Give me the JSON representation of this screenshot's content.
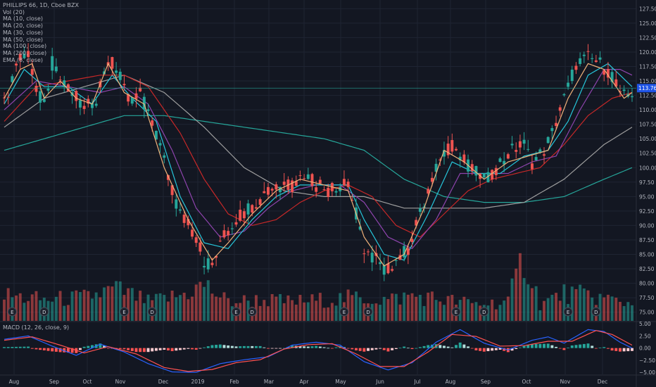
{
  "legend": {
    "title": "PHILLIPS 66, 1D, Cboe BZX",
    "vol": "Vol (20)",
    "ma10": "MA (10, close)",
    "ma20": "MA (20, close)",
    "ma30": "MA (30, close)",
    "ma50": "MA (50, close)",
    "ma100": "MA (100, close)",
    "ma200": "MA (200, close)",
    "ema8": "EMA (8, close)",
    "macd": "MACD (12, 26, close, 9)"
  },
  "colors": {
    "background": "#131722",
    "grid": "#1f2433",
    "up": "#26a69a",
    "down": "#ef5350",
    "ema8": "#f0b27a",
    "ma10": "#26c6da",
    "ma20": "#8e44ad",
    "ma30": "#c62828",
    "ma100": "#9e9e9e",
    "ma200": "#26a69a",
    "macd_line": "#2962ff",
    "signal_line": "#ff5252",
    "price_tag": "#1e53e5"
  },
  "chart_data": {
    "type": "candlestick",
    "title": "PHILLIPS 66, 1D, Cboe BZX",
    "current_price": "113.76",
    "price_axis": [
      "127.50",
      "125.00",
      "122.50",
      "120.00",
      "117.50",
      "115.00",
      "112.50",
      "110.00",
      "107.50",
      "105.00",
      "102.50",
      "100.00",
      "97.50",
      "95.00",
      "92.50",
      "90.00",
      "87.50",
      "85.00",
      "82.50",
      "80.00",
      "77.50",
      "75.00"
    ],
    "macd_axis": [
      "5.00",
      "2.50",
      "0.00",
      "−2.50",
      "−5.00"
    ],
    "x_labels": [
      "Aug",
      "Sep",
      "Oct",
      "Nov",
      "Dec",
      "2019",
      "Feb",
      "Mar",
      "Apr",
      "May",
      "Jun",
      "Jul",
      "Aug",
      "Sep",
      "Oct",
      "Nov",
      "Dec"
    ],
    "ylim": [
      73.5,
      129
    ],
    "macd_ylim": [
      -5.4,
      5.3
    ],
    "price_path": [
      [
        0,
        111
      ],
      [
        3,
        118
      ],
      [
        6,
        120
      ],
      [
        8,
        113
      ],
      [
        10,
        111
      ],
      [
        12,
        118
      ],
      [
        15,
        114
      ],
      [
        18,
        112
      ],
      [
        20,
        110
      ],
      [
        23,
        112
      ],
      [
        26,
        119
      ],
      [
        28,
        117
      ],
      [
        31,
        112
      ],
      [
        34,
        113
      ],
      [
        36,
        109
      ],
      [
        39,
        104
      ],
      [
        41,
        98
      ],
      [
        44,
        92
      ],
      [
        46,
        90
      ],
      [
        48,
        88
      ],
      [
        50,
        84
      ],
      [
        52,
        83
      ],
      [
        55,
        88
      ],
      [
        58,
        91
      ],
      [
        61,
        93
      ],
      [
        63,
        94
      ],
      [
        66,
        96
      ],
      [
        69,
        97
      ],
      [
        72,
        97
      ],
      [
        75,
        99
      ],
      [
        78,
        97
      ],
      [
        81,
        96
      ],
      [
        83,
        97
      ],
      [
        86,
        97
      ],
      [
        88,
        92
      ],
      [
        90,
        86
      ],
      [
        93,
        84
      ],
      [
        95,
        82
      ],
      [
        98,
        84
      ],
      [
        101,
        86
      ],
      [
        104,
        92
      ],
      [
        107,
        97
      ],
      [
        109,
        102
      ],
      [
        112,
        104
      ],
      [
        115,
        101
      ],
      [
        118,
        99
      ],
      [
        121,
        98
      ],
      [
        124,
        101
      ],
      [
        127,
        103
      ],
      [
        130,
        104
      ],
      [
        132,
        101
      ],
      [
        135,
        103
      ],
      [
        137,
        106
      ],
      [
        140,
        112
      ],
      [
        143,
        118
      ],
      [
        146,
        119
      ],
      [
        149,
        118
      ],
      [
        152,
        116
      ],
      [
        154,
        112
      ],
      [
        157,
        113
      ]
    ],
    "ema8": [
      [
        0,
        112
      ],
      [
        4,
        117
      ],
      [
        7,
        118
      ],
      [
        10,
        112
      ],
      [
        14,
        115
      ],
      [
        18,
        112
      ],
      [
        22,
        111
      ],
      [
        26,
        118
      ],
      [
        30,
        113
      ],
      [
        35,
        111
      ],
      [
        40,
        100
      ],
      [
        46,
        91
      ],
      [
        52,
        84
      ],
      [
        56,
        87
      ],
      [
        62,
        92
      ],
      [
        68,
        96
      ],
      [
        74,
        98
      ],
      [
        80,
        97
      ],
      [
        86,
        96
      ],
      [
        90,
        88
      ],
      [
        95,
        83
      ],
      [
        100,
        85
      ],
      [
        105,
        93
      ],
      [
        110,
        103
      ],
      [
        115,
        101
      ],
      [
        120,
        98
      ],
      [
        126,
        101
      ],
      [
        131,
        102
      ],
      [
        136,
        103
      ],
      [
        141,
        112
      ],
      [
        146,
        118
      ],
      [
        150,
        117
      ],
      [
        155,
        112
      ],
      [
        157,
        113
      ]
    ],
    "ma10": [
      [
        0,
        111
      ],
      [
        5,
        117
      ],
      [
        10,
        114
      ],
      [
        16,
        114
      ],
      [
        22,
        111
      ],
      [
        27,
        116
      ],
      [
        32,
        112
      ],
      [
        38,
        108
      ],
      [
        44,
        95
      ],
      [
        50,
        87
      ],
      [
        56,
        86
      ],
      [
        62,
        91
      ],
      [
        68,
        95
      ],
      [
        74,
        97
      ],
      [
        80,
        97
      ],
      [
        86,
        97
      ],
      [
        90,
        91
      ],
      [
        95,
        85
      ],
      [
        100,
        84
      ],
      [
        106,
        92
      ],
      [
        112,
        101
      ],
      [
        118,
        99
      ],
      [
        124,
        99
      ],
      [
        130,
        102
      ],
      [
        136,
        103
      ],
      [
        141,
        108
      ],
      [
        146,
        116
      ],
      [
        151,
        118
      ],
      [
        157,
        114
      ]
    ],
    "ma20": [
      [
        0,
        110
      ],
      [
        8,
        115
      ],
      [
        16,
        114
      ],
      [
        24,
        113
      ],
      [
        30,
        114
      ],
      [
        36,
        111
      ],
      [
        42,
        103
      ],
      [
        48,
        93
      ],
      [
        54,
        88
      ],
      [
        60,
        89
      ],
      [
        66,
        93
      ],
      [
        72,
        96
      ],
      [
        78,
        97
      ],
      [
        84,
        97
      ],
      [
        90,
        94
      ],
      [
        96,
        88
      ],
      [
        102,
        86
      ],
      [
        108,
        91
      ],
      [
        114,
        99
      ],
      [
        120,
        99
      ],
      [
        126,
        99
      ],
      [
        132,
        101
      ],
      [
        138,
        102
      ],
      [
        144,
        110
      ],
      [
        150,
        117
      ],
      [
        154,
        117
      ],
      [
        157,
        116
      ]
    ],
    "ma30": [
      [
        0,
        108
      ],
      [
        8,
        114
      ],
      [
        16,
        115
      ],
      [
        24,
        116
      ],
      [
        30,
        116
      ],
      [
        36,
        114
      ],
      [
        44,
        106
      ],
      [
        50,
        98
      ],
      [
        56,
        92
      ],
      [
        62,
        90
      ],
      [
        68,
        91
      ],
      [
        74,
        94
      ],
      [
        80,
        96
      ],
      [
        86,
        97
      ],
      [
        92,
        95
      ],
      [
        98,
        90
      ],
      [
        104,
        88
      ],
      [
        110,
        92
      ],
      [
        116,
        96
      ],
      [
        122,
        98
      ],
      [
        128,
        99
      ],
      [
        134,
        100
      ],
      [
        140,
        104
      ],
      [
        146,
        109
      ],
      [
        152,
        112
      ],
      [
        157,
        113
      ]
    ],
    "ma100": [
      [
        0,
        107
      ],
      [
        10,
        112
      ],
      [
        20,
        114
      ],
      [
        30,
        116
      ],
      [
        40,
        113
      ],
      [
        50,
        107
      ],
      [
        60,
        100
      ],
      [
        70,
        96
      ],
      [
        80,
        95
      ],
      [
        90,
        95
      ],
      [
        100,
        93
      ],
      [
        110,
        93
      ],
      [
        120,
        93
      ],
      [
        130,
        94
      ],
      [
        140,
        98
      ],
      [
        150,
        104
      ],
      [
        157,
        107
      ]
    ],
    "ma200": [
      [
        0,
        103
      ],
      [
        10,
        105
      ],
      [
        20,
        107
      ],
      [
        30,
        109
      ],
      [
        40,
        109
      ],
      [
        50,
        108
      ],
      [
        60,
        107
      ],
      [
        70,
        106
      ],
      [
        80,
        105
      ],
      [
        90,
        103
      ],
      [
        100,
        98
      ],
      [
        110,
        95
      ],
      [
        120,
        94
      ],
      [
        130,
        94
      ],
      [
        140,
        95
      ],
      [
        150,
        98
      ],
      [
        157,
        100
      ]
    ],
    "volume_path": [
      [
        0,
        1.2
      ],
      [
        10,
        1.0
      ],
      [
        20,
        1.1
      ],
      [
        28,
        1.5
      ],
      [
        36,
        0.9
      ],
      [
        44,
        1.2
      ],
      [
        50,
        1.7
      ],
      [
        56,
        0.9
      ],
      [
        64,
        1.0
      ],
      [
        72,
        0.9
      ],
      [
        80,
        1.0
      ],
      [
        88,
        1.1
      ],
      [
        96,
        1.0
      ],
      [
        102,
        1.2
      ],
      [
        110,
        1.0
      ],
      [
        118,
        0.8
      ],
      [
        126,
        0.9
      ],
      [
        130,
        3.1
      ],
      [
        134,
        0.8
      ],
      [
        140,
        1.3
      ],
      [
        146,
        1.2
      ],
      [
        152,
        1.0
      ],
      [
        157,
        0.8
      ]
    ],
    "macd_path": [
      [
        0,
        1.8
      ],
      [
        6,
        2.5
      ],
      [
        12,
        0.4
      ],
      [
        18,
        -1.5
      ],
      [
        24,
        0.8
      ],
      [
        30,
        -0.8
      ],
      [
        36,
        -3.2
      ],
      [
        42,
        -4.9
      ],
      [
        48,
        -5.0
      ],
      [
        54,
        -3.2
      ],
      [
        60,
        -2.4
      ],
      [
        66,
        -1.8
      ],
      [
        72,
        0.6
      ],
      [
        78,
        1.2
      ],
      [
        84,
        0.6
      ],
      [
        90,
        -2.8
      ],
      [
        96,
        -4.5
      ],
      [
        102,
        -3.0
      ],
      [
        108,
        1.2
      ],
      [
        114,
        3.8
      ],
      [
        120,
        1.0
      ],
      [
        126,
        -0.4
      ],
      [
        132,
        1.6
      ],
      [
        136,
        2.3
      ],
      [
        140,
        1.0
      ],
      [
        146,
        3.8
      ],
      [
        150,
        3.4
      ],
      [
        154,
        1.2
      ],
      [
        157,
        0.0
      ]
    ],
    "signal_path": [
      [
        0,
        1.6
      ],
      [
        7,
        2.3
      ],
      [
        14,
        0.6
      ],
      [
        20,
        -1.0
      ],
      [
        26,
        0.3
      ],
      [
        33,
        -1.2
      ],
      [
        40,
        -4.0
      ],
      [
        46,
        -4.8
      ],
      [
        52,
        -4.4
      ],
      [
        58,
        -3.0
      ],
      [
        64,
        -2.4
      ],
      [
        70,
        -0.2
      ],
      [
        76,
        0.7
      ],
      [
        82,
        0.9
      ],
      [
        88,
        -1.2
      ],
      [
        94,
        -3.8
      ],
      [
        100,
        -3.8
      ],
      [
        106,
        -0.8
      ],
      [
        112,
        2.8
      ],
      [
        118,
        2.4
      ],
      [
        124,
        0.4
      ],
      [
        130,
        0.5
      ],
      [
        136,
        1.4
      ],
      [
        142,
        1.4
      ],
      [
        148,
        3.6
      ],
      [
        152,
        2.8
      ],
      [
        157,
        0.6
      ]
    ],
    "event_markers": [
      {
        "label": "E",
        "x": 2
      },
      {
        "label": "D",
        "x": 10
      },
      {
        "label": "E",
        "x": 30
      },
      {
        "label": "D",
        "x": 37
      },
      {
        "label": "E",
        "x": 58
      },
      {
        "label": "D",
        "x": 62
      },
      {
        "label": "E",
        "x": 85
      },
      {
        "label": "D",
        "x": 91
      },
      {
        "label": "E",
        "x": 113
      },
      {
        "label": "D",
        "x": 120
      },
      {
        "label": "E",
        "x": 141
      },
      {
        "label": "D",
        "x": 148
      }
    ],
    "n_bars": 158
  }
}
